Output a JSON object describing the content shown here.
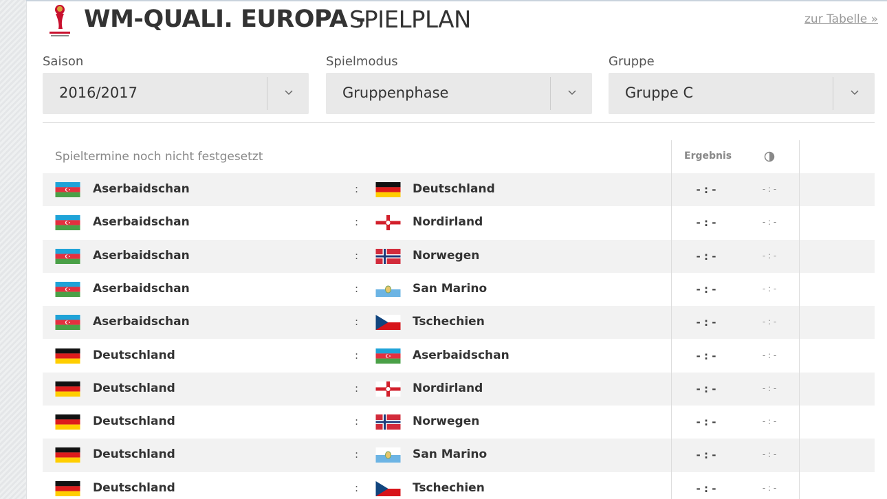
{
  "header": {
    "title": "WM-QUALI. EUROPA -",
    "subtitle": "SPIELPLAN",
    "link": "zur Tabelle »"
  },
  "filters": [
    {
      "label": "Saison",
      "value": "2016/2017"
    },
    {
      "label": "Spielmodus",
      "value": "Gruppenphase"
    },
    {
      "label": "Gruppe",
      "value": "Gruppe C"
    }
  ],
  "table": {
    "note": "Spieltermine noch nicht festgesetzt",
    "result_header": "Ergebnis",
    "rows": [
      {
        "home": "Aserbaidschan",
        "separator": ":",
        "away": "Deutschland",
        "result": "- : -",
        "halftime": "- : -"
      },
      {
        "home": "Aserbaidschan",
        "separator": ":",
        "away": "Nordirland",
        "result": "- : -",
        "halftime": "- : -"
      },
      {
        "home": "Aserbaidschan",
        "separator": ":",
        "away": "Norwegen",
        "result": "- : -",
        "halftime": "- : -"
      },
      {
        "home": "Aserbaidschan",
        "separator": ":",
        "away": "San Marino",
        "result": "- : -",
        "halftime": "- : -"
      },
      {
        "home": "Aserbaidschan",
        "separator": ":",
        "away": "Tschechien",
        "result": "- : -",
        "halftime": "- : -"
      },
      {
        "home": "Deutschland",
        "separator": ":",
        "away": "Aserbaidschan",
        "result": "- : -",
        "halftime": "- : -"
      },
      {
        "home": "Deutschland",
        "separator": ":",
        "away": "Nordirland",
        "result": "- : -",
        "halftime": "- : -"
      },
      {
        "home": "Deutschland",
        "separator": ":",
        "away": "Norwegen",
        "result": "- : -",
        "halftime": "- : -"
      },
      {
        "home": "Deutschland",
        "separator": ":",
        "away": "San Marino",
        "result": "- : -",
        "halftime": "- : -"
      },
      {
        "home": "Deutschland",
        "separator": ":",
        "away": "Tschechien",
        "result": "- : -",
        "halftime": "- : -"
      }
    ]
  }
}
